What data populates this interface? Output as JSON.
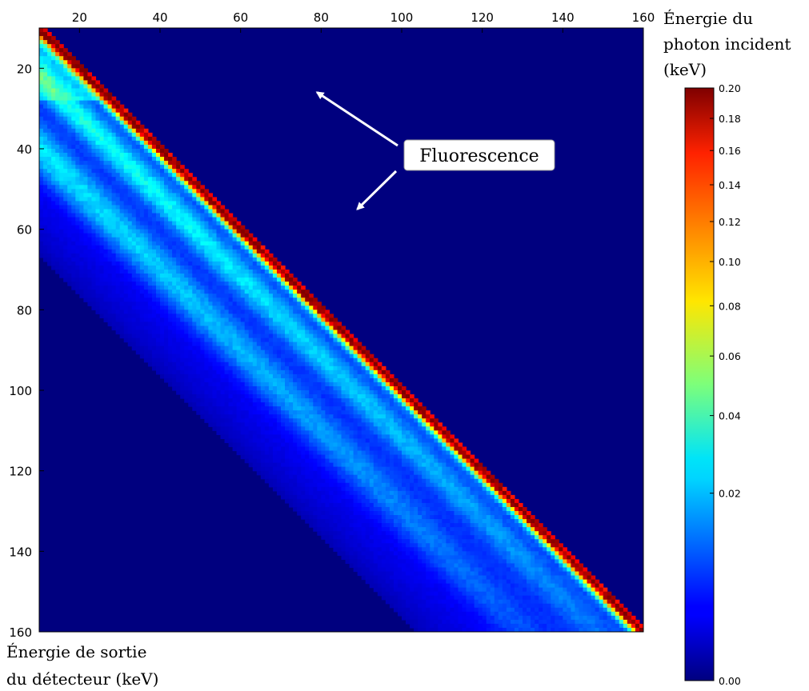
{
  "chart_data": {
    "type": "heatmap",
    "title": "",
    "xlabel": [
      "Énergie de sortie",
      "du détecteur (keV)"
    ],
    "ylabel": [
      "Énergie du",
      "photon incident",
      "(keV)"
    ],
    "x_ticks": [
      20,
      40,
      60,
      80,
      100,
      120,
      140,
      160
    ],
    "y_ticks": [
      20,
      40,
      60,
      80,
      100,
      120,
      140,
      160
    ],
    "x_range": [
      10,
      160
    ],
    "y_range": [
      10,
      160
    ],
    "y_inverted": true,
    "x_axis_position": "top",
    "colormap": "jet",
    "colorbar": {
      "scale": "sqrt",
      "range": [
        0.0,
        0.2
      ],
      "ticks": [
        0.0,
        0.02,
        0.04,
        0.06,
        0.08,
        0.1,
        0.12,
        0.14,
        0.16,
        0.18,
        0.2
      ],
      "tick_labels": [
        "0.00",
        "0.02",
        "0.04",
        "0.06",
        "0.08",
        "0.10",
        "0.12",
        "0.14",
        "0.16",
        "0.18",
        "0.20"
      ]
    },
    "features": {
      "diagonal_photopeak": {
        "description": "x = y",
        "peak_value": 0.2
      },
      "fluorescence_bands": [
        {
          "description": "x = y - 12 (approx.)",
          "value": 0.03
        },
        {
          "description": "x = y - 30 (approx.)",
          "value": 0.03
        },
        {
          "description": "horizontal band y < 28",
          "value": 0.012
        }
      ],
      "background_value": 0.008
    },
    "annotations": [
      {
        "text": "Fluorescence",
        "arrows_to": [
          [
            79,
            26
          ],
          [
            89,
            55
          ]
        ]
      }
    ]
  },
  "colors": {
    "background_low": "#00007f",
    "peak_high": "#800000"
  }
}
